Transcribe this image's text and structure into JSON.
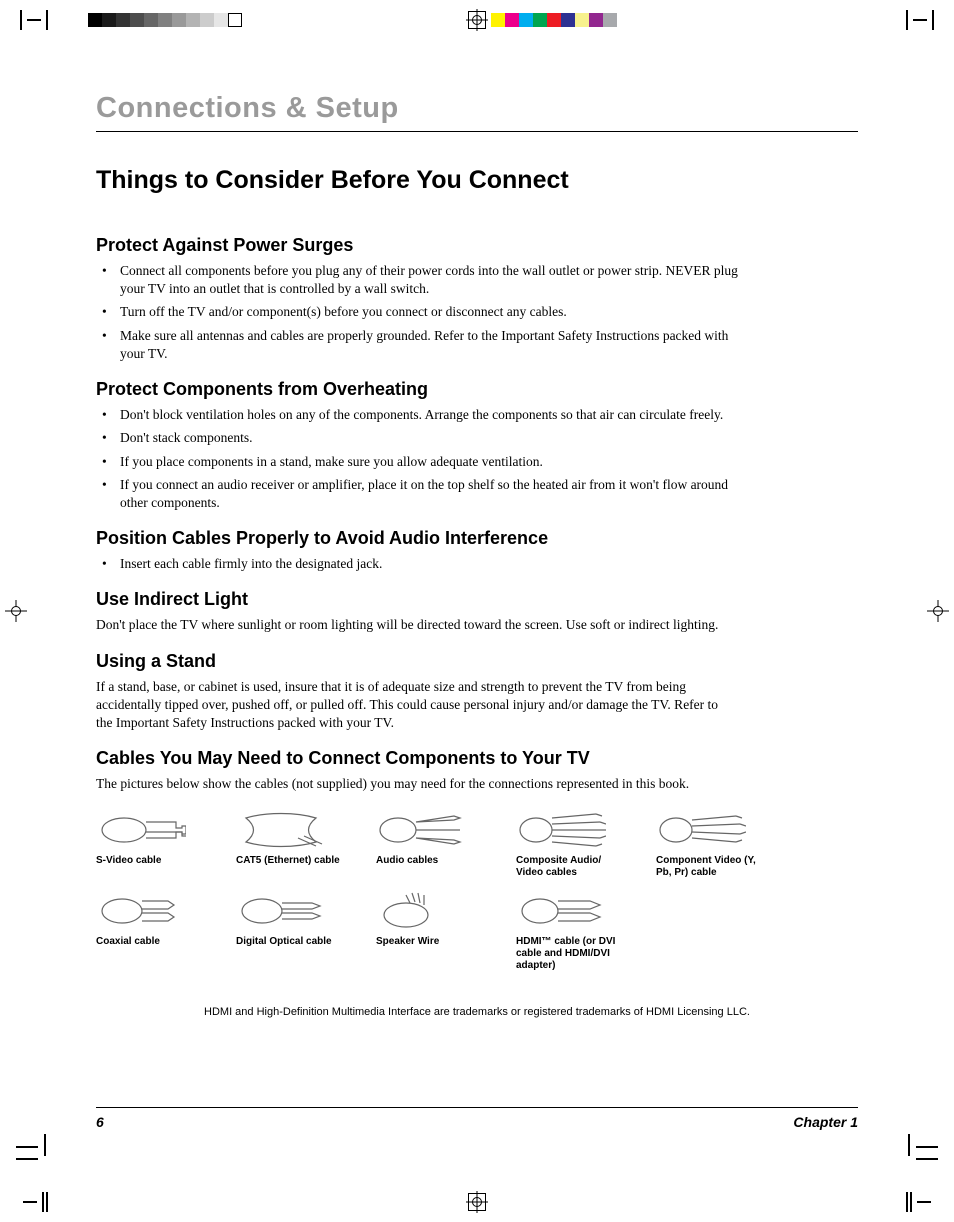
{
  "registration": {
    "gray_strip_colors": [
      "#000000",
      "#1a1a1a",
      "#333333",
      "#4d4d4d",
      "#666666",
      "#808080",
      "#999999",
      "#b3b3b3",
      "#cccccc",
      "#e6e6e6",
      "#ffffff"
    ],
    "color_strip_colors": [
      "#fff200",
      "#ec008c",
      "#00aeef",
      "#00a651",
      "#ed1c24",
      "#2e3192",
      "#f7f18d",
      "#92278f",
      "#a7a9ac"
    ]
  },
  "chapter_title": "Connections & Setup",
  "main_heading": "Things to Consider Before You Connect",
  "sections": {
    "surges": {
      "heading": "Protect Against Power Surges",
      "bullets": [
        "Connect all components before you plug any of their power cords into the wall outlet or power strip. NEVER plug your TV into an outlet that is controlled by a wall switch.",
        "Turn off the TV and/or component(s) before you connect or disconnect any cables.",
        "Make sure all antennas and cables are properly grounded. Refer to the Important Safety Instructions packed with your TV."
      ]
    },
    "overheating": {
      "heading": "Protect Components from Overheating",
      "bullets": [
        "Don't block ventilation holes on any of the components. Arrange the components so that air can circulate freely.",
        "Don't stack components.",
        "If you place components in a stand, make sure you allow adequate ventilation.",
        "If you connect an audio receiver or amplifier, place it on the top shelf so the heated air from it won't flow around other components."
      ]
    },
    "audio": {
      "heading": "Position Cables Properly to Avoid Audio Interference",
      "bullets": [
        "Insert each cable firmly into the designated jack."
      ]
    },
    "light": {
      "heading": "Use Indirect Light",
      "para": "Don't place the TV where sunlight or room lighting will be directed toward the screen. Use soft or indirect lighting."
    },
    "stand": {
      "heading": "Using a Stand",
      "para": "If a stand, base, or cabinet is used, insure that it is of adequate size and strength to prevent the TV from being accidentally tipped over, pushed off, or pulled off. This could cause personal injury and/or damage the TV. Refer to the Important Safety Instructions packed with your TV."
    },
    "cables": {
      "heading": "Cables You May Need to Connect Components to Your TV",
      "para": "The pictures below show the cables (not supplied) you may need for the connections represented in this book.",
      "items": [
        {
          "label": "S-Video cable"
        },
        {
          "label": "CAT5 (Ethernet) cable"
        },
        {
          "label": "Audio cables"
        },
        {
          "label": "Composite Audio/ Video cables"
        },
        {
          "label": "Component Video (Y, Pb, Pr) cable"
        },
        {
          "label": "Coaxial cable"
        },
        {
          "label": "Digital Optical cable"
        },
        {
          "label": "Speaker Wire"
        },
        {
          "label": "HDMI™ cable (or DVI cable and HDMI/DVI adapter)"
        }
      ]
    }
  },
  "trademark_note": "HDMI and High-Definition Multimedia Interface are trademarks or registered trademarks of HDMI Licensing LLC.",
  "footer": {
    "page_number": "6",
    "chapter_label": "Chapter 1"
  }
}
